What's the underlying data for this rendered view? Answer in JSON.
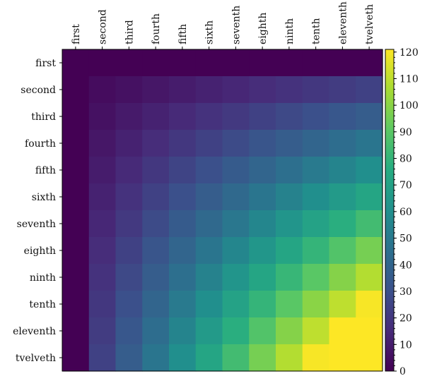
{
  "chart_data": {
    "type": "heatmap",
    "title": "",
    "xlabel": "",
    "ylabel": "",
    "x_categories": [
      "first",
      "second",
      "third",
      "fourth",
      "fifth",
      "sixth",
      "seventh",
      "eighth",
      "ninth",
      "tenth",
      "eleventh",
      "tvelveth"
    ],
    "y_categories": [
      "first",
      "second",
      "third",
      "fourth",
      "fifth",
      "sixth",
      "seventh",
      "eighth",
      "ninth",
      "tenth",
      "eleventh",
      "tvelveth"
    ],
    "values": [
      [
        0,
        0,
        0,
        0,
        0,
        0,
        0,
        0,
        0,
        0,
        0,
        0
      ],
      [
        0,
        4,
        6,
        8,
        10,
        12,
        14,
        16,
        18,
        20,
        22,
        24
      ],
      [
        0,
        6,
        9,
        12,
        15,
        18,
        21,
        24,
        27,
        30,
        33,
        36
      ],
      [
        0,
        8,
        12,
        16,
        20,
        24,
        28,
        32,
        36,
        40,
        44,
        48
      ],
      [
        0,
        10,
        15,
        20,
        25,
        30,
        35,
        40,
        45,
        50,
        55,
        60
      ],
      [
        0,
        12,
        18,
        24,
        30,
        36,
        42,
        48,
        54,
        60,
        66,
        72
      ],
      [
        0,
        14,
        21,
        28,
        35,
        42,
        49,
        56,
        63,
        70,
        77,
        84
      ],
      [
        0,
        16,
        24,
        32,
        40,
        48,
        56,
        64,
        72,
        80,
        88,
        96
      ],
      [
        0,
        18,
        27,
        36,
        45,
        54,
        63,
        72,
        81,
        90,
        99,
        108
      ],
      [
        0,
        20,
        30,
        40,
        50,
        60,
        70,
        80,
        90,
        100,
        110,
        120
      ],
      [
        0,
        22,
        33,
        44,
        55,
        66,
        77,
        88,
        99,
        110,
        121,
        121
      ],
      [
        0,
        24,
        36,
        48,
        60,
        72,
        84,
        96,
        108,
        120,
        121,
        121
      ]
    ],
    "colorbar": {
      "min": 0,
      "max": 121,
      "ticks": [
        0,
        10,
        20,
        30,
        40,
        50,
        60,
        70,
        80,
        90,
        100,
        110,
        120
      ],
      "colormap": "viridis"
    },
    "x_tick_position": "top",
    "grid": false
  }
}
